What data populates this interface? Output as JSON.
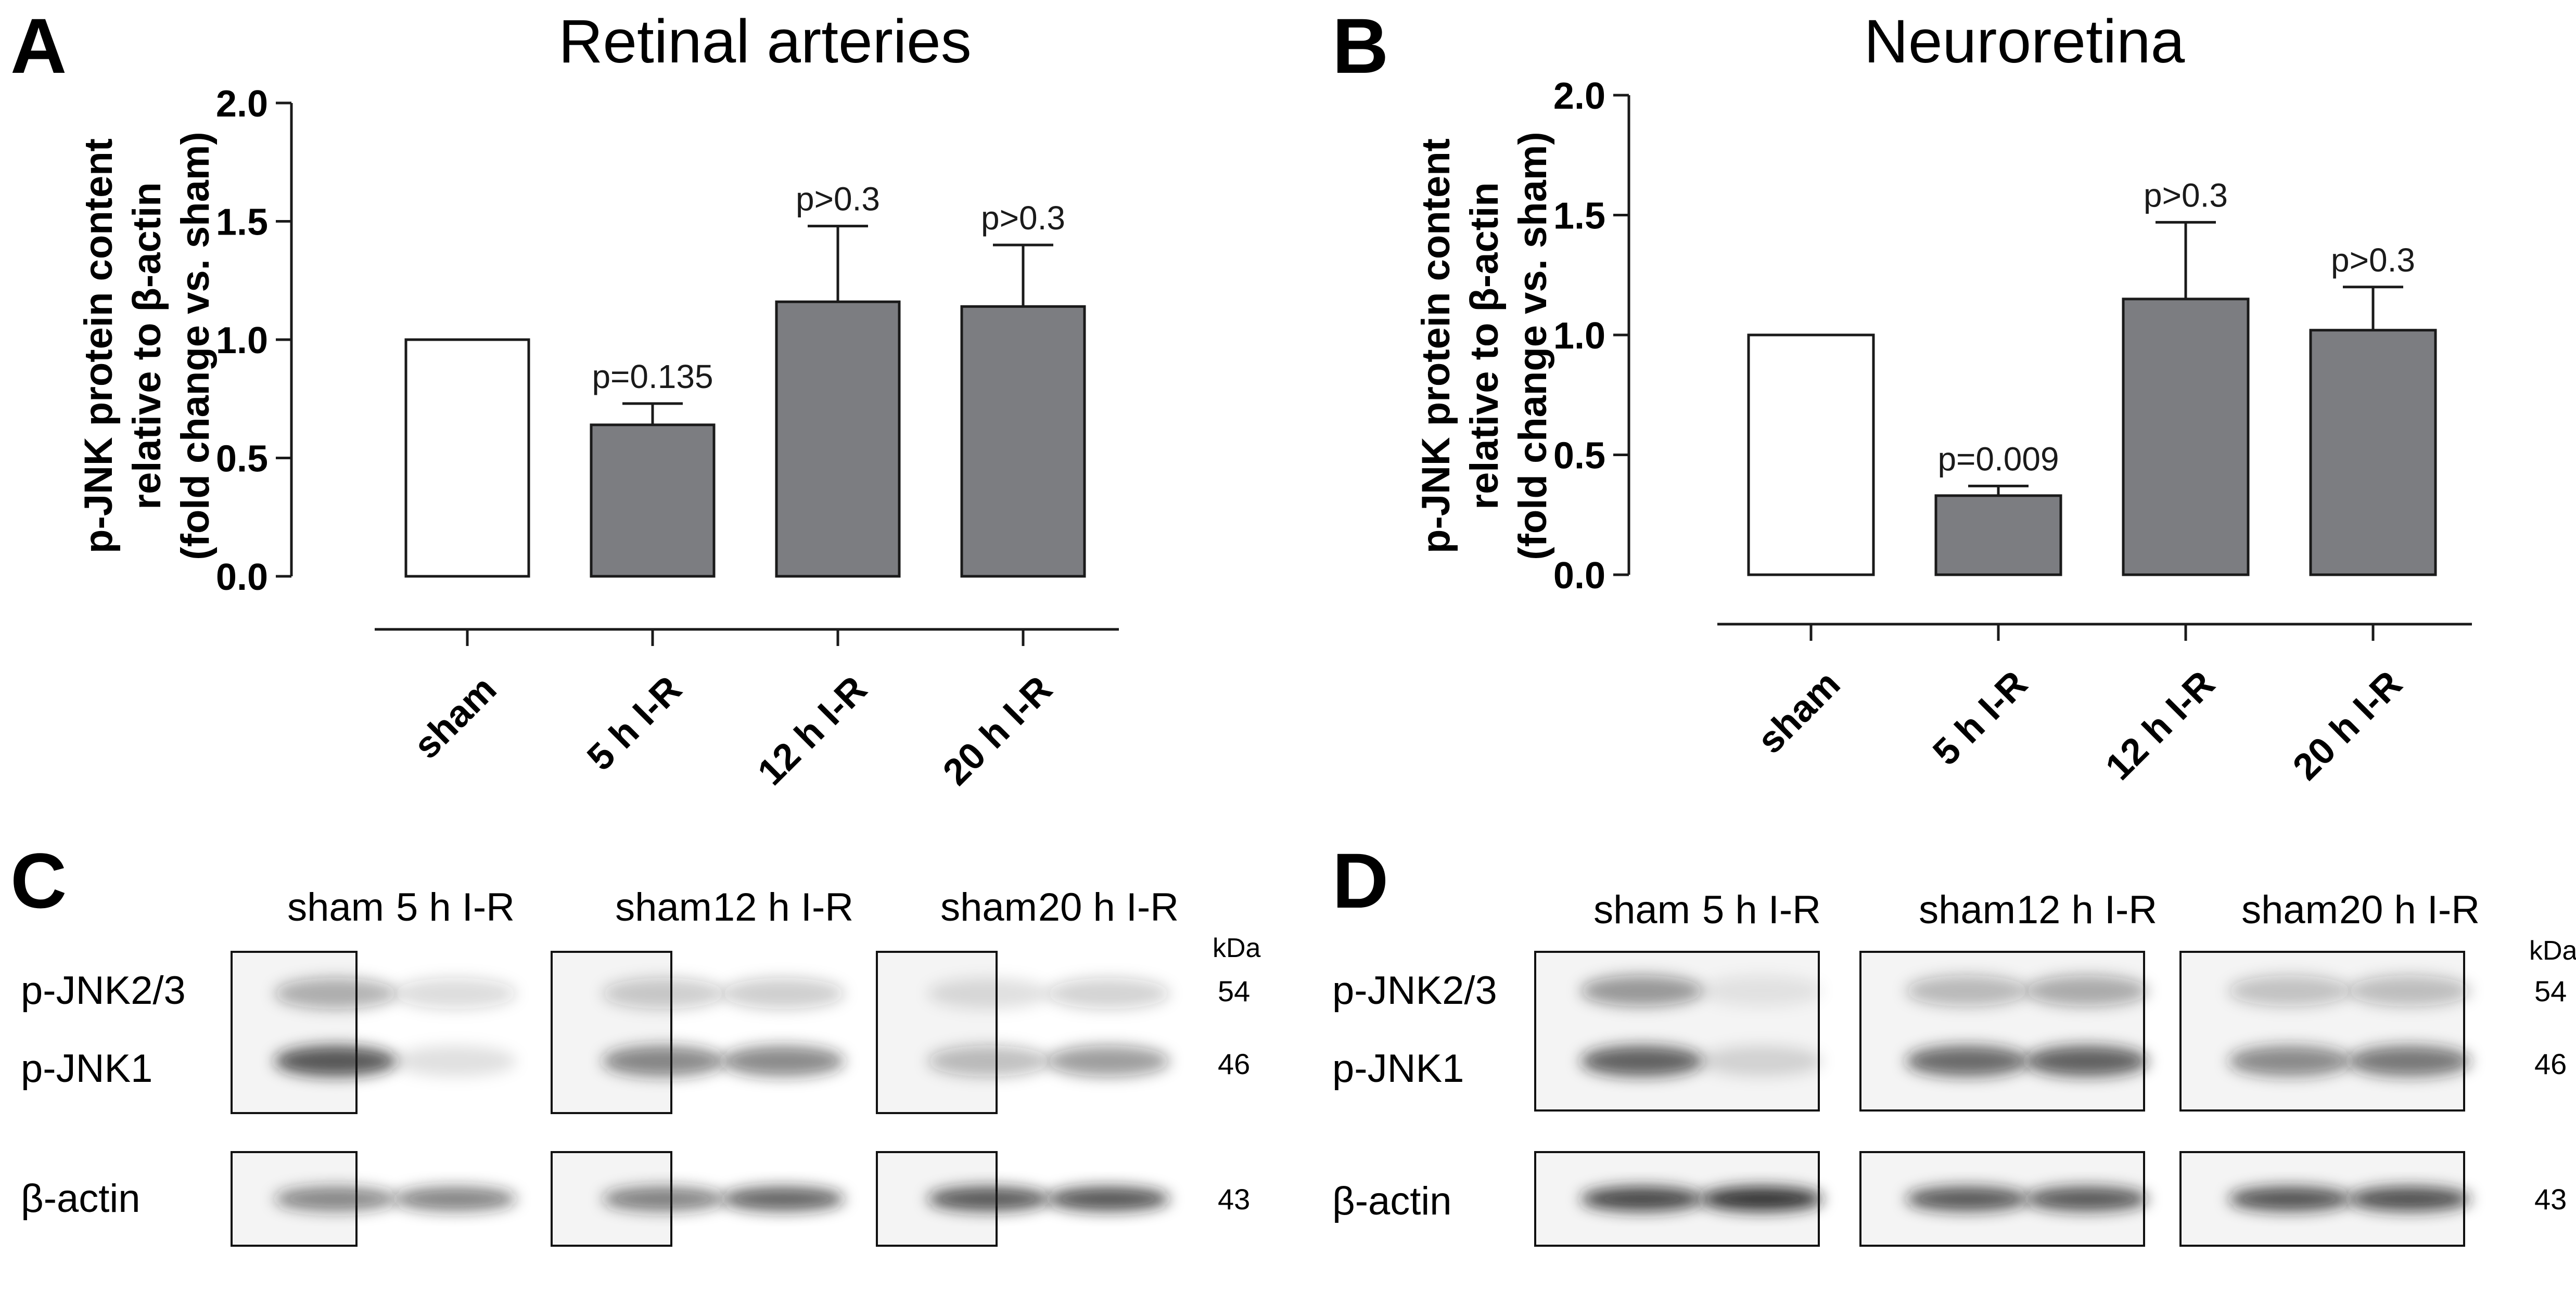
{
  "panels": {
    "A": "A",
    "B": "B",
    "C": "C",
    "D": "D"
  },
  "colors": {
    "control_bar": "#ffffff",
    "treated_bar": "#7c7d81",
    "outline": "#1a1a1a"
  },
  "chart_data": [
    {
      "type": "bar",
      "title": "Retinal arteries",
      "ylabel_lines": [
        "p-JNK protein content",
        "relative to β-actin",
        "(fold change vs. sham)"
      ],
      "categories": [
        "sham",
        "5 h I-R",
        "12 h I-R",
        "20 h I-R"
      ],
      "values": [
        1.0,
        0.64,
        1.16,
        1.14
      ],
      "error_upper": [
        null,
        0.73,
        1.48,
        1.4
      ],
      "annotations": [
        "",
        "p=0.135",
        "p>0.3",
        "p>0.3"
      ],
      "bar_fill": [
        "control",
        "treated",
        "treated",
        "treated"
      ],
      "ylim": [
        0,
        2.0
      ],
      "yticks": [
        "0.0",
        "0.5",
        "1.0",
        "1.5",
        "2.0"
      ],
      "grid": false
    },
    {
      "type": "bar",
      "title": "Neuroretina",
      "ylabel_lines": [
        "p-JNK protein content",
        "relative to β-actin",
        "(fold change vs. sham)"
      ],
      "categories": [
        "sham",
        "5 h I-R",
        "12 h I-R",
        "20 h I-R"
      ],
      "values": [
        1.0,
        0.33,
        1.15,
        1.02
      ],
      "error_upper": [
        null,
        0.37,
        1.47,
        1.2
      ],
      "annotations": [
        "",
        "p=0.009",
        "p>0.3",
        "p>0.3"
      ],
      "bar_fill": [
        "control",
        "treated",
        "treated",
        "treated"
      ],
      "ylim": [
        0,
        2.0
      ],
      "yticks": [
        "0.0",
        "0.5",
        "1.0",
        "1.5",
        "2.0"
      ],
      "grid": false
    }
  ],
  "blots": {
    "C": {
      "lanes": [
        "sham",
        "5 h I-R",
        "sham",
        "12 h I-R",
        "sham",
        "20 h I-R"
      ],
      "rows": [
        "p-JNK2/3",
        "p-JNK1",
        "β-actin"
      ],
      "kda_label": "kDa",
      "kda": [
        "54",
        "46",
        "43"
      ],
      "intensities": {
        "p-JNK2/3": [
          0.33,
          0.16,
          0.22,
          0.22,
          0.12,
          0.2
        ],
        "p-JNK1": [
          0.72,
          0.12,
          0.52,
          0.52,
          0.28,
          0.42
        ],
        "β-actin": [
          0.52,
          0.55,
          0.55,
          0.68,
          0.72,
          0.74
        ]
      }
    },
    "D": {
      "lanes": [
        "sham",
        "5 h I-R",
        "sham",
        "12 h I-R",
        "sham",
        "20 h I-R"
      ],
      "rows": [
        "p-JNK2/3",
        "p-JNK1",
        "β-actin"
      ],
      "kda_label": "kDa",
      "kda": [
        "54",
        "46",
        "43"
      ],
      "intensities": {
        "p-JNK2/3": [
          0.42,
          0.08,
          0.28,
          0.34,
          0.24,
          0.26
        ],
        "p-JNK1": [
          0.68,
          0.14,
          0.64,
          0.68,
          0.5,
          0.58
        ],
        "β-actin": [
          0.82,
          0.9,
          0.72,
          0.72,
          0.74,
          0.78
        ]
      }
    }
  }
}
